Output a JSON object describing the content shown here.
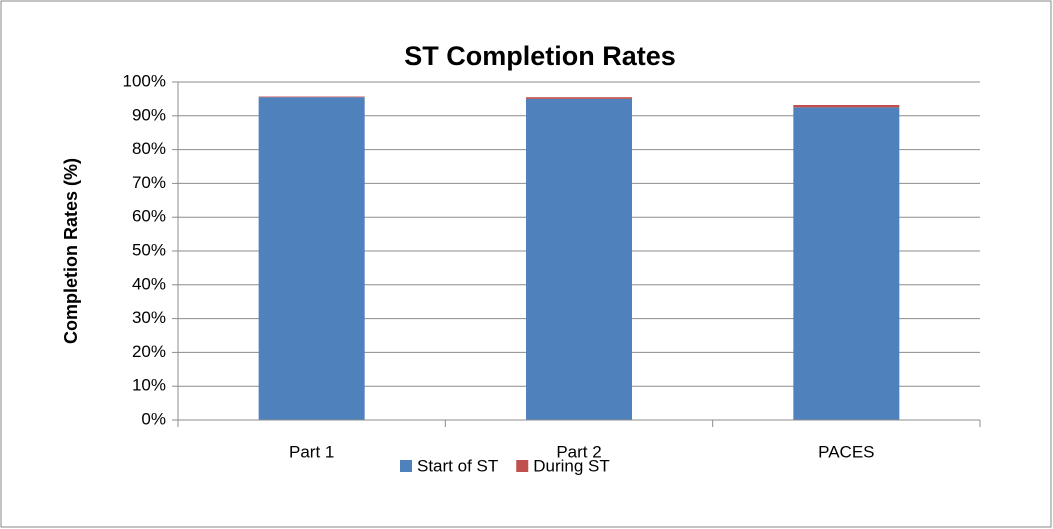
{
  "chart_data": {
    "type": "stacked_bar",
    "title": "ST Completion Rates",
    "ylabel": "Completion Rates (%)",
    "categories": [
      "Part 1",
      "Part 2",
      "PACES"
    ],
    "series": [
      {
        "name": "Start of ST",
        "color": "#4f81bd",
        "values": [
          95.5,
          95,
          92.5
        ]
      },
      {
        "name": "During ST",
        "color": "#c0504d",
        "values": [
          0.2,
          0.5,
          0.7
        ]
      }
    ],
    "ylim": [
      0,
      100
    ],
    "yticks": [
      {
        "value": 0,
        "label": "0%"
      },
      {
        "value": 10,
        "label": "10%"
      },
      {
        "value": 20,
        "label": "20%"
      },
      {
        "value": 30,
        "label": "30%"
      },
      {
        "value": 40,
        "label": "40%"
      },
      {
        "value": 50,
        "label": "50%"
      },
      {
        "value": 60,
        "label": "60%"
      },
      {
        "value": 70,
        "label": "70%"
      },
      {
        "value": 80,
        "label": "80%"
      },
      {
        "value": 90,
        "label": "90%"
      },
      {
        "value": 100,
        "label": "100%"
      }
    ],
    "grid": true,
    "legend": "bottom"
  }
}
